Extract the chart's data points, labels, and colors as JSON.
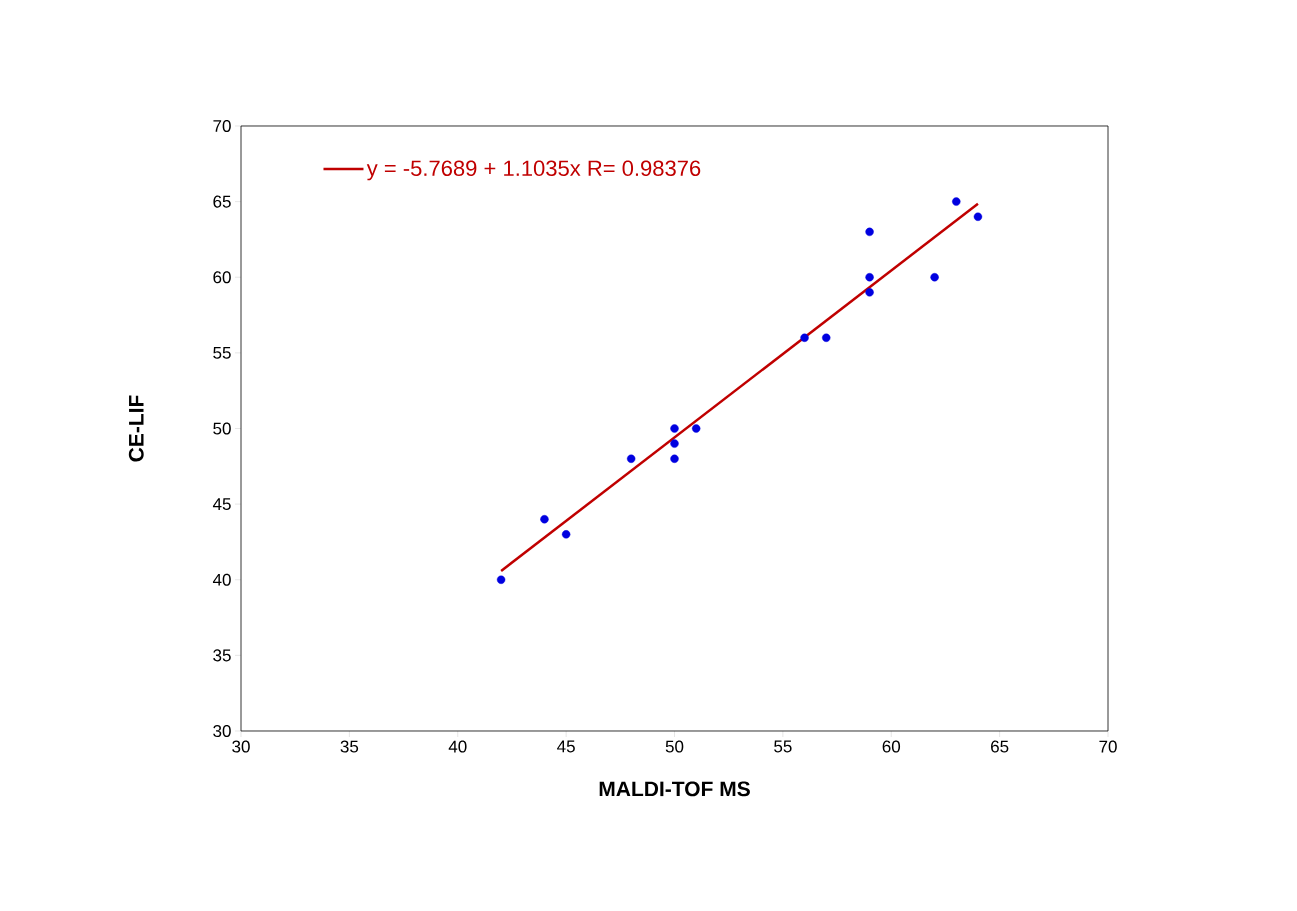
{
  "chart_data": {
    "type": "scatter",
    "xlabel": "MALDI-TOF MS",
    "ylabel": "CE-LIF",
    "xlim": [
      30,
      70
    ],
    "ylim": [
      30,
      70
    ],
    "xticks": [
      30,
      35,
      40,
      45,
      50,
      55,
      60,
      65,
      70
    ],
    "yticks": [
      30,
      35,
      40,
      45,
      50,
      55,
      60,
      65,
      70
    ],
    "legend": "top left",
    "series": [
      {
        "type": "scatter",
        "color": "#0000e0",
        "marker": "circle",
        "x": [
          42,
          44,
          45,
          48,
          50,
          50,
          50,
          51,
          56,
          57,
          59,
          59,
          59,
          62,
          63,
          64
        ],
        "values": [
          40,
          44,
          43,
          48,
          50,
          49,
          48,
          50,
          56,
          56,
          63,
          60,
          59,
          60,
          65,
          64
        ]
      },
      {
        "type": "line",
        "name": "y = -5.7689 + 1.1035x R= 0.98376",
        "color": "#c00000",
        "marker": "none",
        "x": [
          42,
          64
        ],
        "values": [
          40.58,
          64.86
        ]
      }
    ]
  }
}
